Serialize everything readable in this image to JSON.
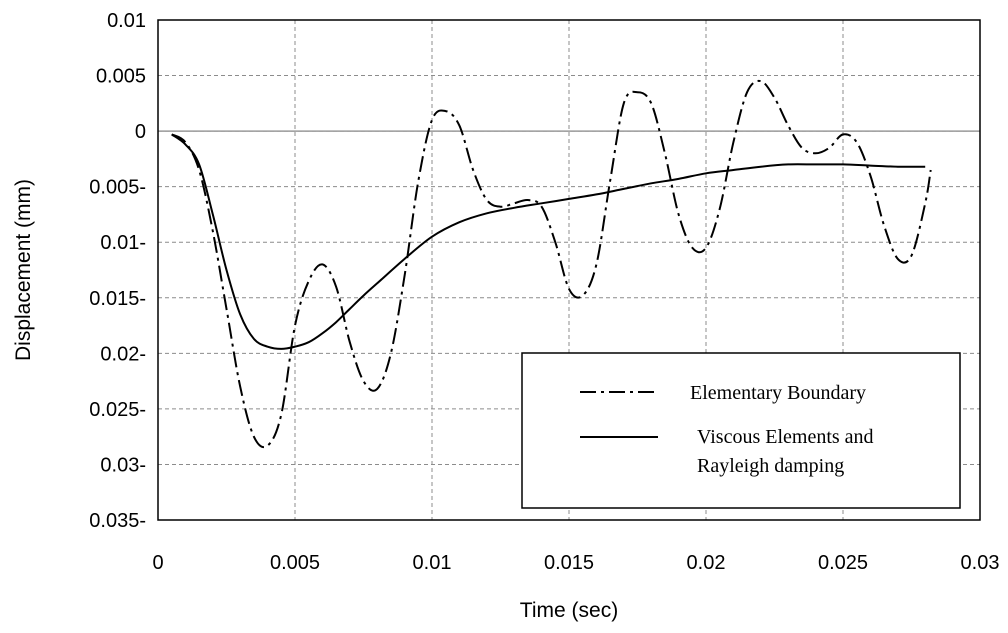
{
  "chart_data": {
    "type": "line",
    "title": "",
    "xlabel": "Time (sec)",
    "ylabel": "Displacement (mm)",
    "xlim": [
      0,
      0.03
    ],
    "ylim": [
      -0.035,
      0.01
    ],
    "grid": true,
    "legend_position": "bottom-right",
    "x_tick_labels": [
      "0",
      "0.005",
      "0.01",
      "0.015",
      "0.02",
      "0.025",
      "0.03"
    ],
    "y_tick_labels": [
      "0.01",
      "0.005",
      "0",
      "0.005-",
      "0.01-",
      "0.015-",
      "0.02-",
      "0.025-",
      "0.03-",
      "0.035-"
    ],
    "series": [
      {
        "name": "Elementary Boundary",
        "style": "dash-dot",
        "color": "#000000",
        "x": [
          0.0005,
          0.001,
          0.0015,
          0.002,
          0.0025,
          0.003,
          0.0035,
          0.004,
          0.0045,
          0.005,
          0.0055,
          0.006,
          0.0065,
          0.007,
          0.0075,
          0.008,
          0.0085,
          0.009,
          0.0095,
          0.01,
          0.0105,
          0.011,
          0.0115,
          0.012,
          0.0125,
          0.013,
          0.0135,
          0.014,
          0.0145,
          0.015,
          0.0155,
          0.016,
          0.0165,
          0.017,
          0.0175,
          0.018,
          0.0185,
          0.019,
          0.0195,
          0.02,
          0.0205,
          0.021,
          0.0215,
          0.022,
          0.0225,
          0.023,
          0.0235,
          0.024,
          0.0245,
          0.025,
          0.0255,
          0.026,
          0.0265,
          0.027,
          0.0275,
          0.028,
          0.0282
        ],
        "y": [
          -0.0003,
          -0.001,
          -0.0035,
          -0.009,
          -0.016,
          -0.023,
          -0.0275,
          -0.0283,
          -0.0255,
          -0.0175,
          -0.0135,
          -0.012,
          -0.014,
          -0.019,
          -0.0225,
          -0.0232,
          -0.02,
          -0.013,
          -0.0045,
          0.001,
          0.0018,
          0.0005,
          -0.0035,
          -0.0062,
          -0.0068,
          -0.0065,
          -0.0062,
          -0.0068,
          -0.01,
          -0.0142,
          -0.0148,
          -0.012,
          -0.0045,
          0.0025,
          0.0035,
          0.0025,
          -0.002,
          -0.0075,
          -0.0105,
          -0.0105,
          -0.007,
          -0.001,
          0.0035,
          0.0045,
          0.003,
          0.0005,
          -0.0015,
          -0.002,
          -0.0015,
          -0.0003,
          -0.001,
          -0.004,
          -0.0085,
          -0.0115,
          -0.0112,
          -0.0065,
          -0.0035
        ]
      },
      {
        "name": "Viscous Elements and Rayleigh damping",
        "style": "solid",
        "color": "#000000",
        "x": [
          0.0005,
          0.001,
          0.0015,
          0.002,
          0.0025,
          0.003,
          0.0035,
          0.004,
          0.0045,
          0.005,
          0.0055,
          0.006,
          0.0065,
          0.007,
          0.0075,
          0.008,
          0.009,
          0.01,
          0.011,
          0.012,
          0.013,
          0.014,
          0.015,
          0.016,
          0.017,
          0.018,
          0.019,
          0.02,
          0.021,
          0.022,
          0.023,
          0.024,
          0.025,
          0.026,
          0.027,
          0.028
        ],
        "y": [
          -0.0003,
          -0.0012,
          -0.003,
          -0.0075,
          -0.0125,
          -0.0165,
          -0.0187,
          -0.0194,
          -0.0196,
          -0.0194,
          -0.019,
          -0.0182,
          -0.0172,
          -0.016,
          -0.0148,
          -0.0137,
          -0.0115,
          -0.0095,
          -0.0082,
          -0.0074,
          -0.0069,
          -0.0065,
          -0.0061,
          -0.0057,
          -0.0052,
          -0.0047,
          -0.0043,
          -0.0038,
          -0.0035,
          -0.0032,
          -0.003,
          -0.003,
          -0.003,
          -0.0031,
          -0.0032,
          -0.0032
        ]
      }
    ],
    "legend": {
      "entries": [
        {
          "series": 0,
          "lines": [
            "Elementary Boundary"
          ]
        },
        {
          "series": 1,
          "lines": [
            "Viscous Elements and",
            "Rayleigh damping"
          ]
        }
      ]
    }
  }
}
